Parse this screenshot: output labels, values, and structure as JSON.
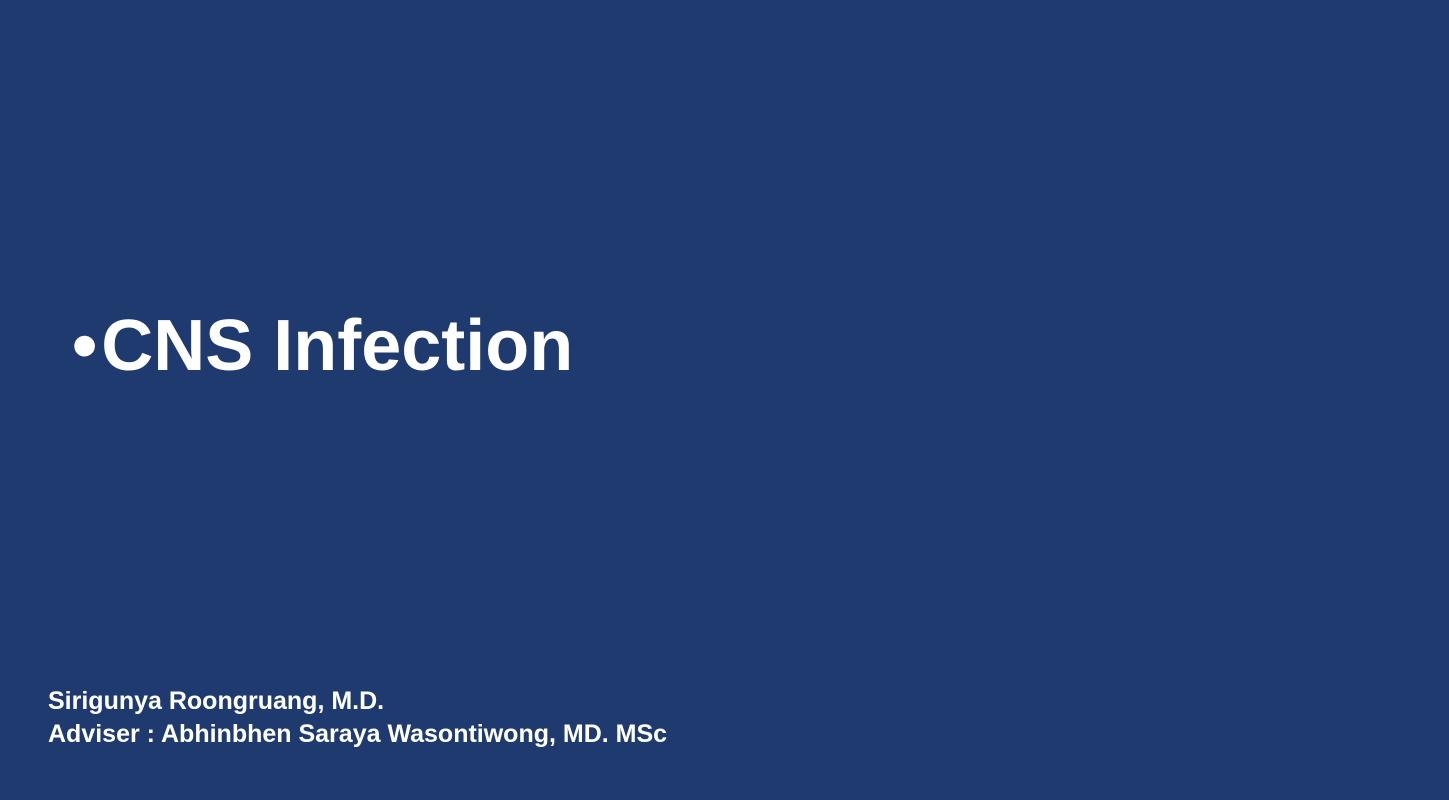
{
  "slide": {
    "background_color": "#1e3a6e",
    "text_color": "#ffffff",
    "title": {
      "bullet": "•",
      "text": "CNS Infection",
      "font_size": 72,
      "font_weight": "bold"
    },
    "authors": {
      "line1": "Sirigunya Roongruang, M.D.",
      "line2": "Adviser : Abhinbhen Saraya Wasontiwong, MD. MSc",
      "font_size": 25,
      "font_weight": "bold"
    }
  }
}
